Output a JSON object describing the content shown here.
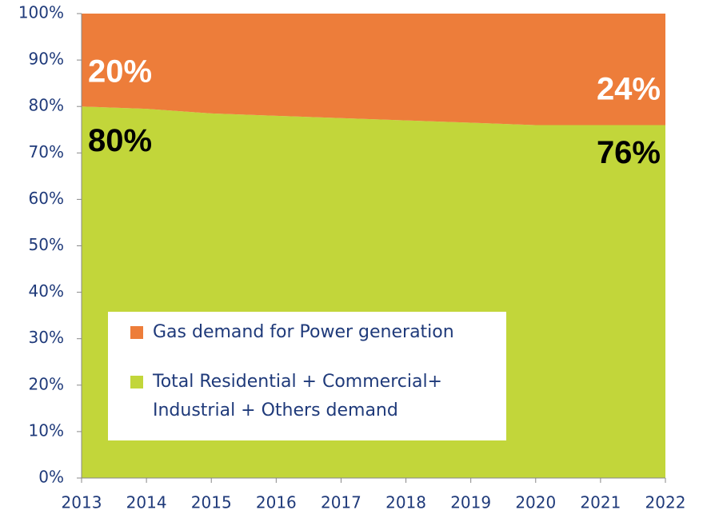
{
  "chart_data": {
    "type": "stacked_area",
    "x": [
      2013,
      2014,
      2015,
      2016,
      2017,
      2018,
      2019,
      2020,
      2021,
      2022
    ],
    "xlim": [
      2013,
      2022
    ],
    "xticks": [
      2013,
      2014,
      2015,
      2016,
      2017,
      2018,
      2019,
      2020,
      2021,
      2022
    ],
    "ylim": [
      0,
      100
    ],
    "yticks": [
      {
        "value": 0,
        "label": "0%"
      },
      {
        "value": 10,
        "label": "10%"
      },
      {
        "value": 20,
        "label": "20%"
      },
      {
        "value": 30,
        "label": "30%"
      },
      {
        "value": 40,
        "label": "40%"
      },
      {
        "value": 50,
        "label": "50%"
      },
      {
        "value": 60,
        "label": "60%"
      },
      {
        "value": 70,
        "label": "70%"
      },
      {
        "value": 80,
        "label": "80%"
      },
      {
        "value": 90,
        "label": "90%"
      },
      {
        "value": 100,
        "label": "100%"
      }
    ],
    "series": [
      {
        "name": "Gas demand for Power generation",
        "color": "#ed7d3a",
        "values": [
          20,
          20.5,
          21.5,
          22,
          22.5,
          23,
          23.5,
          24,
          24,
          24
        ],
        "value_labels": [
          "20%",
          null,
          null,
          null,
          null,
          null,
          null,
          null,
          null,
          "24%"
        ]
      },
      {
        "name": "Total Residential + Commercial+ Industrial + Others demand",
        "color": "#c2d63a",
        "values": [
          80,
          79.5,
          78.5,
          78,
          77.5,
          77,
          76.5,
          76,
          76,
          76
        ],
        "value_labels": [
          "80%",
          null,
          null,
          null,
          null,
          null,
          null,
          null,
          null,
          "76%"
        ]
      }
    ]
  }
}
